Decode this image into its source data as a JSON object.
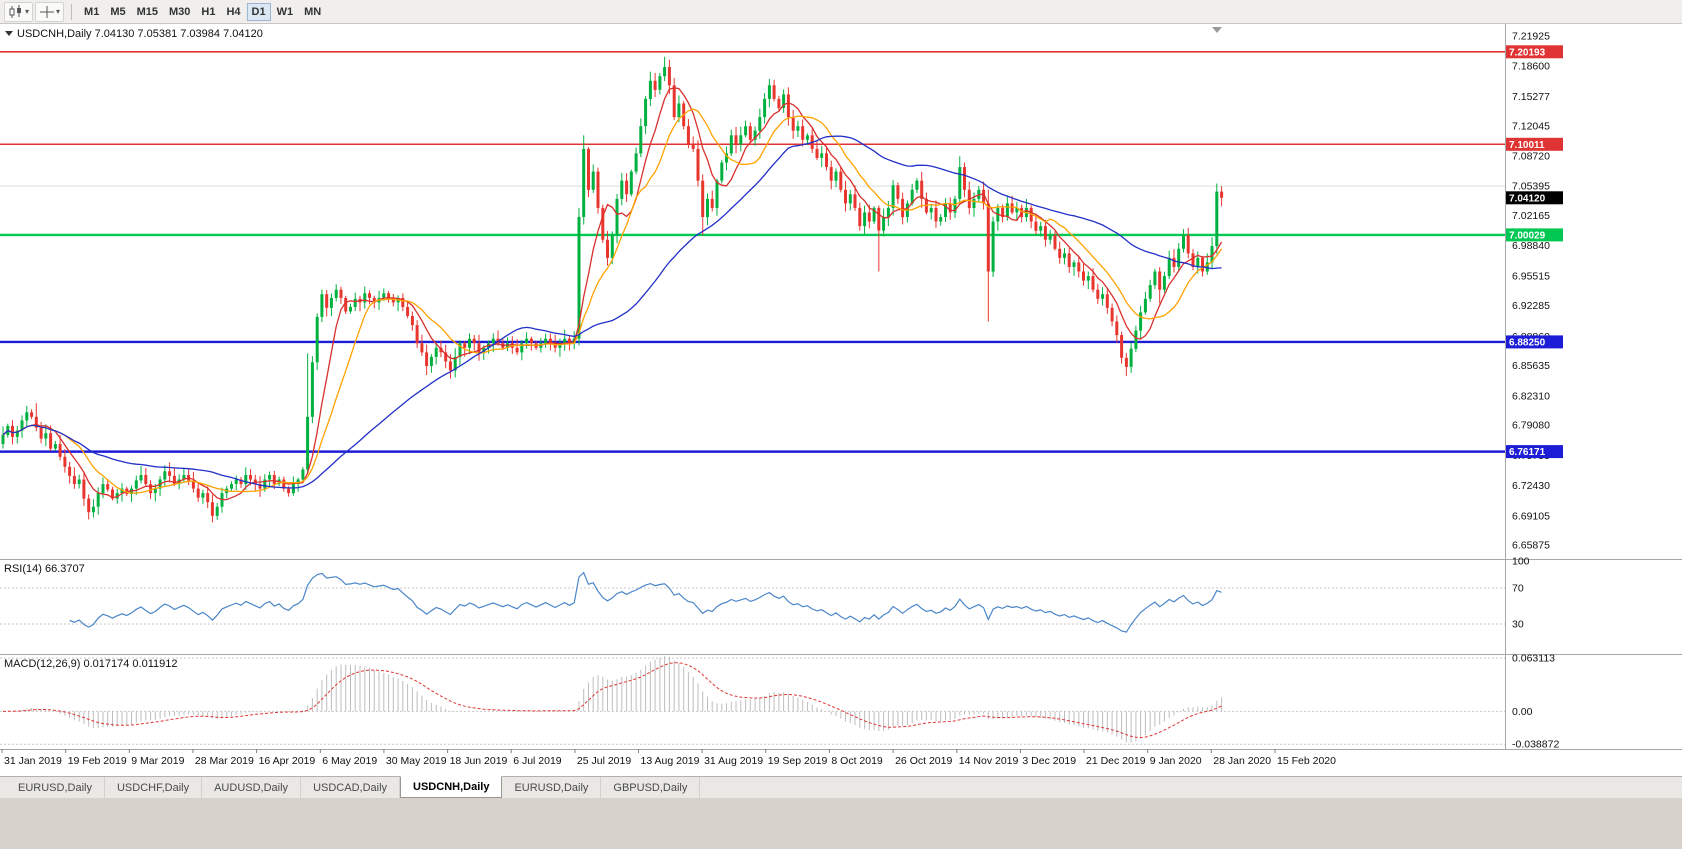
{
  "toolbar": {
    "timeframes": [
      "M1",
      "M5",
      "M15",
      "M30",
      "H1",
      "H4",
      "D1",
      "W1",
      "MN"
    ],
    "active_timeframe": "D1"
  },
  "symbol_header": {
    "text": "USDCNH,Daily 7.04130 7.05381 7.03984 7.04120"
  },
  "tabs": [
    "EURUSD,Daily",
    "USDCHF,Daily",
    "AUDUSD,Daily",
    "USDCAD,Daily",
    "USDCNH,Daily",
    "EURUSD,Daily",
    "GBPUSD,Daily"
  ],
  "active_tab": "USDCNH,Daily",
  "colors": {
    "candle_up": "#00b140",
    "candle_down": "#e8352e",
    "ma_fast": "#d9302c",
    "ma_mid": "#ffa200",
    "ma_slow": "#2230c8",
    "rsi_line": "#4a86c8",
    "macd_hist": "#bdbdbd",
    "macd_signal": "#e03434",
    "grid": "#dcdcdc",
    "tag_current_bg": "#000000"
  },
  "chart_data": {
    "type": "candlestick",
    "symbol": "USDCNH",
    "timeframe": "Daily",
    "last_candle": {
      "open": 7.0413,
      "high": 7.05381,
      "low": 7.03984,
      "close": 7.0412
    },
    "price_axis_labels": [
      "7.21925",
      "7.18600",
      "7.15277",
      "7.12045",
      "7.08720",
      "7.05395",
      "7.02165",
      "6.98840",
      "6.95515",
      "6.92285",
      "6.88860",
      "6.85635",
      "6.82310",
      "6.79080",
      "6.75755",
      "6.72430",
      "6.69105",
      "6.65875"
    ],
    "time_axis_labels": [
      "31 Jan 2019",
      "19 Feb 2019",
      "9 Mar 2019",
      "28 Mar 2019",
      "16 Apr 2019",
      "6 May 2019",
      "30 May 2019",
      "18 Jun 2019",
      "6 Jul 2019",
      "25 Jul 2019",
      "13 Aug 2019",
      "31 Aug 2019",
      "19 Sep 2019",
      "8 Oct 2019",
      "26 Oct 2019",
      "14 Nov 2019",
      "3 Dec 2019",
      "21 Dec 2019",
      "9 Jan 2020",
      "28 Jan 2020",
      "15 Feb 2020"
    ],
    "levels": [
      {
        "price": 7.20193,
        "label": "7.20193",
        "color": "#e03434",
        "width": 1.6
      },
      {
        "price": 7.10011,
        "label": "7.10011",
        "color": "#e03434",
        "width": 1.6
      },
      {
        "price": 7.00029,
        "label": "7.00029",
        "color": "#00c853",
        "width": 2.4
      },
      {
        "price": 6.8825,
        "label": "6.88250",
        "color": "#1d1dd8",
        "width": 2.4
      },
      {
        "price": 6.76171,
        "label": "6.76171",
        "color": "#1d1dd8",
        "width": 2.4
      }
    ],
    "current_price": {
      "value": 7.0412,
      "label": "7.04120"
    },
    "grid_line_price": 7.05395,
    "price_range": [
      6.6435,
      7.2325
    ],
    "first_open": 6.77,
    "closes": [
      6.78,
      6.79,
      6.778,
      6.785,
      6.796,
      6.805,
      6.8,
      6.788,
      6.776,
      6.782,
      6.765,
      6.77,
      6.756,
      6.745,
      6.735,
      6.726,
      6.731,
      6.71,
      6.695,
      6.701,
      6.716,
      6.726,
      6.72,
      6.71,
      6.716,
      6.721,
      6.715,
      6.721,
      6.73,
      6.736,
      6.726,
      6.716,
      6.721,
      6.731,
      6.74,
      6.735,
      6.726,
      6.731,
      6.736,
      6.73,
      6.721,
      6.711,
      6.716,
      6.706,
      6.691,
      6.701,
      6.716,
      6.721,
      6.726,
      6.731,
      6.726,
      6.736,
      6.731,
      6.726,
      6.721,
      6.731,
      6.736,
      6.726,
      6.731,
      6.721,
      6.716,
      6.726,
      6.731,
      6.742,
      6.8,
      6.86,
      6.91,
      6.935,
      6.92,
      6.931,
      6.94,
      6.931,
      6.916,
      6.921,
      6.93,
      6.926,
      6.936,
      6.931,
      6.926,
      6.931,
      6.936,
      6.931,
      6.926,
      6.931,
      6.921,
      6.911,
      6.901,
      6.881,
      6.871,
      6.856,
      6.866,
      6.876,
      6.871,
      6.861,
      6.851,
      6.866,
      6.881,
      6.876,
      6.886,
      6.881,
      6.871,
      6.876,
      6.881,
      6.886,
      6.881,
      6.876,
      6.881,
      6.876,
      6.871,
      6.881,
      6.886,
      6.881,
      6.876,
      6.881,
      6.886,
      6.881,
      6.876,
      6.881,
      6.886,
      6.881,
      6.886,
      7.02,
      7.095,
      7.05,
      7.07,
      7.03,
      6.995,
      6.975,
      7.0,
      7.04,
      7.06,
      7.045,
      7.07,
      7.09,
      7.12,
      7.15,
      7.17,
      7.16,
      7.175,
      7.185,
      7.165,
      7.13,
      7.145,
      7.12,
      7.1,
      7.095,
      7.06,
      7.02,
      7.04,
      7.03,
      7.06,
      7.08,
      7.09,
      7.11,
      7.1,
      7.11,
      7.12,
      7.105,
      7.115,
      7.13,
      7.15,
      7.165,
      7.15,
      7.14,
      7.155,
      7.13,
      7.115,
      7.12,
      7.105,
      7.11,
      7.095,
      7.085,
      7.09,
      7.075,
      7.06,
      7.07,
      7.05,
      7.035,
      7.045,
      7.03,
      7.01,
      7.025,
      7.015,
      7.03,
      7.005,
      7.02,
      7.03,
      7.055,
      7.04,
      7.02,
      7.035,
      7.05,
      7.06,
      7.04,
      7.025,
      7.03,
      7.015,
      7.02,
      7.035,
      7.025,
      7.04,
      7.075,
      7.05,
      7.03,
      7.04,
      7.05,
      7.035,
      6.96,
      7.015,
      7.03,
      7.02,
      7.035,
      7.025,
      7.03,
      7.02,
      7.03,
      7.015,
      7.005,
      7.01,
      6.995,
      7.0,
      6.985,
      6.975,
      6.98,
      6.965,
      6.97,
      6.96,
      6.95,
      6.955,
      6.94,
      6.93,
      6.935,
      6.92,
      6.905,
      6.89,
      6.865,
      6.855,
      6.875,
      6.895,
      6.915,
      6.93,
      6.945,
      6.96,
      6.94,
      6.955,
      6.975,
      6.965,
      6.985,
      7.0,
      6.98,
      6.965,
      6.975,
      6.96,
      6.97,
      6.988,
      7.048,
      7.0412
    ],
    "wick_overrides": {
      "5": [
        6.812,
        null
      ],
      "7": [
        6.815,
        null
      ],
      "18": [
        null,
        6.687
      ],
      "44": [
        null,
        6.685
      ],
      "64": [
        6.87,
        null
      ],
      "122": [
        7.11,
        null
      ],
      "136": [
        7.18,
        null
      ],
      "139": [
        7.1965,
        null
      ],
      "147": [
        null,
        7.0
      ],
      "161": [
        7.172,
        null
      ],
      "184": [
        null,
        6.96
      ],
      "201": [
        7.087,
        null
      ],
      "207": [
        7.05,
        6.905
      ],
      "236": [
        null,
        6.845
      ],
      "243": [
        null,
        6.925
      ],
      "255": [
        7.052,
        null
      ],
      "256": [
        7.0538,
        7.0398
      ]
    },
    "moving_averages": [
      {
        "period": 7,
        "color": "#d9302c"
      },
      {
        "period": 13,
        "color": "#ffa200"
      },
      {
        "period": 45,
        "color": "#2230c8"
      }
    ],
    "rsi": {
      "period": 14,
      "label": "RSI(14) 66.3707",
      "value": 66.3707,
      "axis_labels": [
        "100",
        "70",
        "30"
      ],
      "guide_levels": [
        70,
        30
      ]
    },
    "macd": {
      "params": [
        12,
        26,
        9
      ],
      "label": "MACD(12,26,9) 0.017174 0.011912",
      "values": [
        0.017174,
        0.011912
      ],
      "axis_labels": [
        "0.063113",
        "0.00",
        "-0.038872"
      ],
      "scale": [
        0.068,
        -0.0445
      ]
    }
  }
}
